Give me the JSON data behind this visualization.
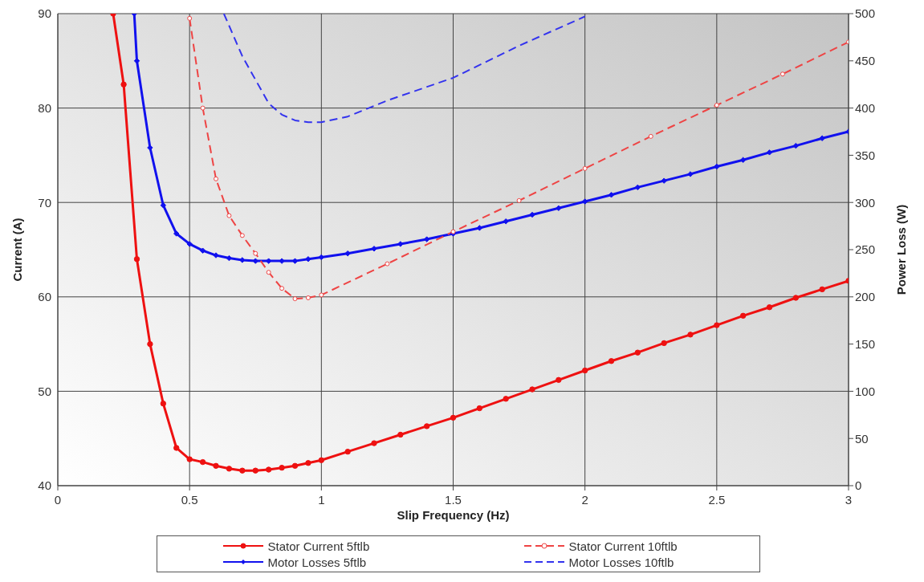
{
  "chart_data": {
    "type": "line",
    "xlabel": "Slip Frequency (Hz)",
    "ylabel": "Current (A)",
    "y2label": "Power Loss (W)",
    "xlim": [
      0,
      3
    ],
    "xticks": [
      0,
      0.5,
      1,
      1.5,
      2,
      2.5,
      3
    ],
    "ylim": [
      40,
      90
    ],
    "yticks": [
      40,
      50,
      60,
      70,
      80,
      90
    ],
    "y2lim": [
      0,
      500
    ],
    "y2ticks": [
      0,
      50,
      100,
      150,
      200,
      250,
      300,
      350,
      400,
      450,
      500
    ],
    "grid": true,
    "legend": "bottom",
    "series": [
      {
        "name": "Stator Current 5ftlb",
        "color": "#ee1111",
        "marker": "circle",
        "line_style": "solid",
        "x": [
          0.21,
          0.25,
          0.3,
          0.35,
          0.4,
          0.45,
          0.5,
          0.55,
          0.6,
          0.65,
          0.7,
          0.75,
          0.8,
          0.85,
          0.9,
          0.95,
          1.0,
          1.1,
          1.2,
          1.3,
          1.4,
          1.5,
          1.6,
          1.7,
          1.8,
          1.9,
          2.0,
          2.1,
          2.2,
          2.3,
          2.4,
          2.5,
          2.6,
          2.7,
          2.8,
          2.9,
          3.0
        ],
        "values": [
          90,
          82.5,
          64,
          55,
          48.7,
          44,
          42.8,
          42.5,
          42.1,
          41.8,
          41.6,
          41.6,
          41.7,
          41.9,
          42.1,
          42.4,
          42.7,
          43.6,
          44.5,
          45.4,
          46.3,
          47.2,
          48.2,
          49.2,
          50.2,
          51.2,
          52.2,
          53.2,
          54.1,
          55.1,
          56,
          57,
          58,
          58.9,
          59.9,
          60.8,
          61.7
        ]
      },
      {
        "name": "Stator Current 10ftlb",
        "color": "#ee4444",
        "marker": "circle",
        "line_style": "dashed",
        "x": [
          0.5,
          0.55,
          0.6,
          0.65,
          0.7,
          0.75,
          0.8,
          0.85,
          0.9,
          0.95,
          1.0,
          1.25,
          1.5,
          1.75,
          2.0,
          2.25,
          2.5,
          2.75,
          3.0
        ],
        "values": [
          89.5,
          80,
          72.5,
          68.6,
          66.5,
          64.6,
          62.6,
          60.9,
          59.8,
          59.9,
          60.2,
          63.5,
          66.9,
          70.2,
          73.6,
          77,
          80.3,
          83.6,
          87
        ]
      },
      {
        "name": "Motor Losses 5ftlb",
        "color": "#1111ee",
        "marker": "diamond",
        "line_style": "solid",
        "axis": "y2",
        "x": [
          0.29,
          0.3,
          0.35,
          0.4,
          0.45,
          0.5,
          0.55,
          0.6,
          0.65,
          0.7,
          0.75,
          0.8,
          0.85,
          0.9,
          0.95,
          1.0,
          1.1,
          1.2,
          1.3,
          1.4,
          1.5,
          1.6,
          1.7,
          1.8,
          1.9,
          2.0,
          2.1,
          2.2,
          2.3,
          2.4,
          2.5,
          2.6,
          2.7,
          2.8,
          2.9,
          3.0
        ],
        "values": [
          500,
          450,
          358,
          297,
          267,
          256,
          249,
          244,
          241,
          239,
          238,
          238,
          238,
          238,
          240,
          242,
          246,
          251,
          256,
          261,
          267,
          273,
          280,
          287,
          294,
          301,
          308,
          316,
          323,
          330,
          338,
          345,
          353,
          360,
          368,
          375
        ]
      },
      {
        "name": "Motor Losses 10ftlb",
        "color": "#3333ee",
        "marker": "none",
        "line_style": "dashed",
        "axis": "y2",
        "x": [
          0.63,
          0.7,
          0.75,
          0.8,
          0.85,
          0.9,
          0.95,
          1.0,
          1.1,
          1.25,
          1.5,
          1.75,
          2.0
        ],
        "values": [
          500,
          455,
          430,
          405,
          393,
          387,
          385,
          385,
          391,
          408,
          432,
          466,
          497
        ]
      }
    ]
  }
}
